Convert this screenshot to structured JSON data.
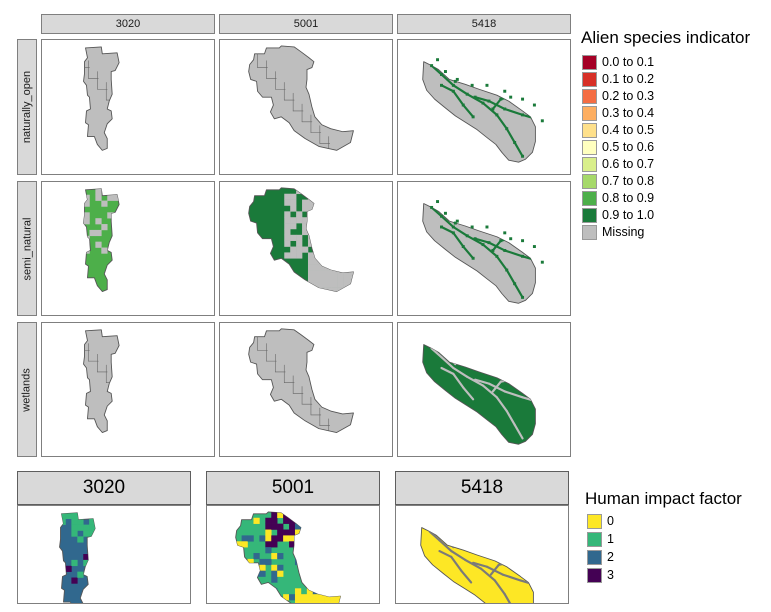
{
  "chart_data": [
    {
      "type": "map",
      "facet_columns": [
        "3020",
        "5001",
        "5418"
      ],
      "facet_rows": [
        "naturally_open",
        "semi_natural",
        "wetlands"
      ],
      "legend": {
        "title": "Alien species indicator",
        "placement": "right",
        "entries": [
          {
            "label": "0.0 to 0.1",
            "color": "#a50026"
          },
          {
            "label": "0.1 to 0.2",
            "color": "#d73027"
          },
          {
            "label": "0.2 to 0.3",
            "color": "#f46d43"
          },
          {
            "label": "0.3 to 0.4",
            "color": "#fdae61"
          },
          {
            "label": "0.4 to 0.5",
            "color": "#fee08b"
          },
          {
            "label": "0.5 to 0.6",
            "color": "#ffffbf"
          },
          {
            "label": "0.6 to 0.7",
            "color": "#d9ef8b"
          },
          {
            "label": "0.7 to 0.8",
            "color": "#a6d96a"
          },
          {
            "label": "0.8 to 0.9",
            "color": "#4daf4a"
          },
          {
            "label": "0.9 to 1.0",
            "color": "#1a7a3a"
          },
          {
            "label": "Missing",
            "color": "#bebebe"
          }
        ]
      },
      "panels": [
        {
          "column": "3020",
          "row": "naturally_open",
          "dominant_class": "Missing"
        },
        {
          "column": "5001",
          "row": "naturally_open",
          "dominant_class": "Missing"
        },
        {
          "column": "5418",
          "row": "naturally_open",
          "dominant_class": "Missing",
          "other_class": "0.9 to 1.0"
        },
        {
          "column": "3020",
          "row": "semi_natural",
          "dominant_class": "0.8 to 0.9"
        },
        {
          "column": "5001",
          "row": "semi_natural",
          "dominant_class": "0.9 to 1.0"
        },
        {
          "column": "5418",
          "row": "semi_natural",
          "dominant_class": "Missing",
          "other_class": "0.9 to 1.0"
        },
        {
          "column": "3020",
          "row": "wetlands",
          "dominant_class": "Missing"
        },
        {
          "column": "5001",
          "row": "wetlands",
          "dominant_class": "Missing"
        },
        {
          "column": "5418",
          "row": "wetlands",
          "dominant_class": "0.9 to 1.0"
        }
      ]
    },
    {
      "type": "map",
      "facets": [
        "3020",
        "5001",
        "5418"
      ],
      "legend": {
        "title": "Human impact factor",
        "placement": "right",
        "entries": [
          {
            "label": "0",
            "color": "#fde725"
          },
          {
            "label": "1",
            "color": "#35b779"
          },
          {
            "label": "2",
            "color": "#31688e"
          },
          {
            "label": "3",
            "color": "#440154"
          }
        ]
      },
      "panels": [
        {
          "facet": "3020",
          "dominant_class": "2"
        },
        {
          "facet": "5001",
          "dominant_class": "1"
        },
        {
          "facet": "5418",
          "dominant_class": "0"
        }
      ]
    }
  ]
}
